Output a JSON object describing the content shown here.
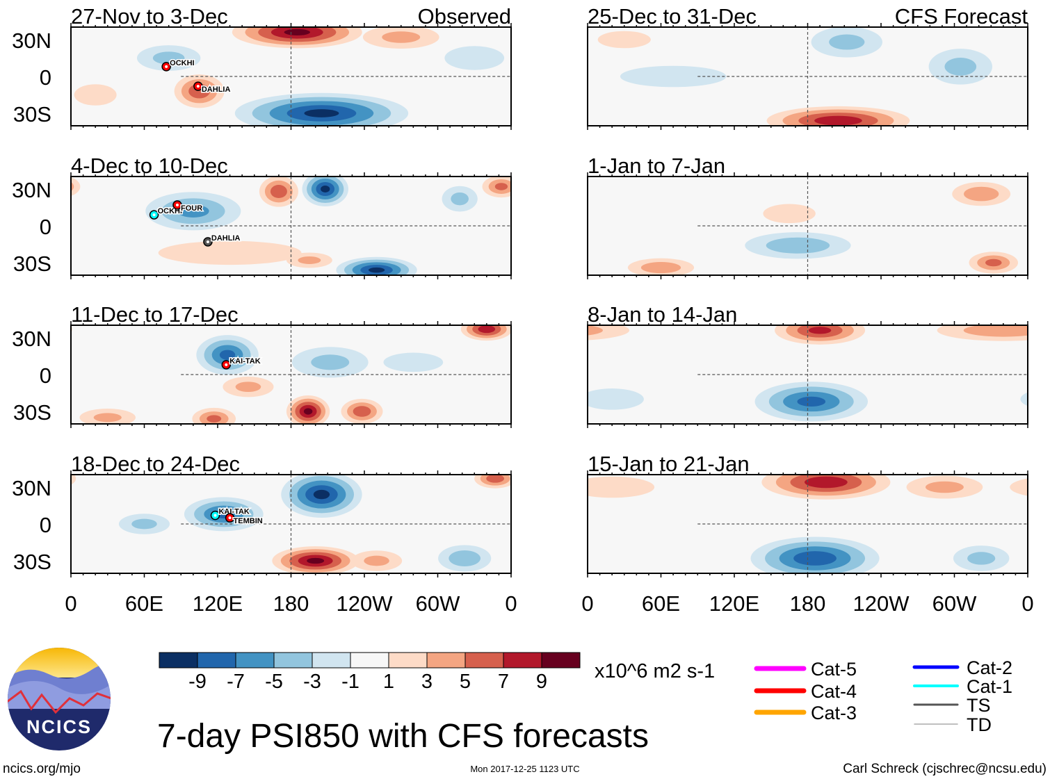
{
  "chart_data": {
    "type": "heatmap",
    "title": "7-day PSI850 with CFS forecasts",
    "units": "x10^6 m2 s-1",
    "colorbar": {
      "ticks": [
        "-9",
        "-7",
        "-5",
        "-3",
        "-1",
        "1",
        "3",
        "5",
        "7",
        "9"
      ],
      "levels": [
        -9,
        -7,
        -5,
        -3,
        -1,
        1,
        3,
        5,
        7,
        9
      ],
      "colors": [
        "#0b2f63",
        "#2166ac",
        "#4393c3",
        "#92c5de",
        "#d1e5f0",
        "#f7f7f7",
        "#fddbc7",
        "#f4a582",
        "#d6604d",
        "#b2182b",
        "#67001f"
      ]
    },
    "xticks": [
      "0",
      "60E",
      "120E",
      "180",
      "120W",
      "60W",
      "0"
    ],
    "yticks": [
      "30N",
      "0",
      "30S"
    ],
    "columns": {
      "left": "Observed",
      "right": "CFS Forecast"
    },
    "panels": [
      {
        "title": "27-Nov to 3-Dec",
        "col": 0,
        "row": 0,
        "anomalies": [
          [
            185,
            36,
            45,
            11,
            10
          ],
          [
            205,
            -30,
            60,
            14,
            -10
          ],
          [
            105,
            -12,
            18,
            12,
            7
          ],
          [
            80,
            15,
            25,
            10,
            -4
          ],
          [
            270,
            32,
            30,
            9,
            4
          ],
          [
            330,
            15,
            25,
            10,
            -3
          ],
          [
            20,
            -15,
            20,
            10,
            2
          ]
        ],
        "storms": [
          {
            "name": "OCKHI",
            "lon": 78,
            "lat": 8,
            "color": "#ff0000"
          },
          {
            "name": "DAHLIA",
            "lon": 104,
            "lat": -8,
            "color": "#ff0000"
          }
        ]
      },
      {
        "title": "4-Dec to 10-Dec",
        "col": 0,
        "row": 1,
        "anomalies": [
          [
            100,
            12,
            35,
            14,
            -6
          ],
          [
            170,
            28,
            14,
            11,
            7
          ],
          [
            208,
            30,
            16,
            12,
            -10
          ],
          [
            250,
            -36,
            28,
            9,
            -10
          ],
          [
            130,
            -22,
            60,
            10,
            3
          ],
          [
            352,
            32,
            14,
            8,
            6
          ],
          [
            318,
            22,
            14,
            10,
            -4
          ],
          [
            195,
            -28,
            18,
            6,
            4
          ]
        ],
        "storms": [
          {
            "name": "OCKHI",
            "lon": 68,
            "lat": 9,
            "color": "#00ffff"
          },
          {
            "name": "FOUR",
            "lon": 87,
            "lat": 17,
            "color": "#ff0000"
          },
          {
            "name": "DAHLIA",
            "lon": 112,
            "lat": -13,
            "color": "#555555"
          }
        ]
      },
      {
        "title": "11-Dec to 17-Dec",
        "col": 0,
        "row": 2,
        "anomalies": [
          [
            128,
            16,
            22,
            14,
            -8
          ],
          [
            194,
            -30,
            15,
            11,
            10
          ],
          [
            238,
            -30,
            15,
            9,
            7
          ],
          [
            340,
            37,
            18,
            8,
            9
          ],
          [
            117,
            -36,
            16,
            8,
            6
          ],
          [
            212,
            10,
            30,
            12,
            -4
          ],
          [
            30,
            -35,
            22,
            7,
            4
          ],
          [
            145,
            -10,
            20,
            8,
            4
          ],
          [
            280,
            10,
            25,
            8,
            -3
          ]
        ],
        "storms": [
          {
            "name": "KAI-TAK",
            "lon": 127,
            "lat": 8,
            "color": "#ff0000"
          }
        ]
      },
      {
        "title": "18-Dec to 24-Dec",
        "col": 0,
        "row": 3,
        "anomalies": [
          [
            205,
            24,
            28,
            16,
            -10
          ],
          [
            200,
            -30,
            30,
            10,
            10
          ],
          [
            125,
            8,
            28,
            12,
            -8
          ],
          [
            60,
            0,
            20,
            8,
            -4
          ],
          [
            322,
            -28,
            20,
            10,
            -5
          ],
          [
            347,
            37,
            15,
            7,
            7
          ],
          [
            250,
            -30,
            20,
            8,
            4
          ]
        ],
        "storms": [
          {
            "name": "KAI-TAK",
            "lon": 118,
            "lat": 7,
            "color": "#00ffff"
          },
          {
            "name": "TEMBIN",
            "lon": 130,
            "lat": 5,
            "color": "#ff0000"
          }
        ]
      },
      {
        "title": "25-Dec to 31-Dec",
        "col": 1,
        "row": 0,
        "anomalies": [
          [
            205,
            -36,
            50,
            10,
            9
          ],
          [
            212,
            28,
            28,
            12,
            -4
          ],
          [
            305,
            8,
            25,
            14,
            -4
          ],
          [
            70,
            0,
            50,
            10,
            -2
          ],
          [
            30,
            30,
            25,
            8,
            2
          ]
        ],
        "storms": []
      },
      {
        "title": "1-Jan to 7-Jan",
        "col": 1,
        "row": 1,
        "anomalies": [
          [
            172,
            -16,
            40,
            10,
            -5
          ],
          [
            322,
            26,
            22,
            9,
            5
          ],
          [
            60,
            -34,
            25,
            7,
            5
          ],
          [
            332,
            -30,
            18,
            8,
            6
          ],
          [
            165,
            10,
            22,
            8,
            3
          ]
        ],
        "storms": []
      },
      {
        "title": "8-Jan to 14-Jan",
        "col": 1,
        "row": 2,
        "anomalies": [
          [
            190,
            36,
            32,
            10,
            8
          ],
          [
            183,
            -22,
            40,
            14,
            -8
          ],
          [
            340,
            36,
            50,
            8,
            5
          ],
          [
            20,
            -20,
            30,
            10,
            -2
          ]
        ],
        "storms": []
      },
      {
        "title": "15-Jan to 21-Jan",
        "col": 1,
        "row": 3,
        "anomalies": [
          [
            195,
            34,
            45,
            12,
            9
          ],
          [
            186,
            -28,
            45,
            15,
            -9
          ],
          [
            292,
            30,
            30,
            9,
            4
          ],
          [
            322,
            -28,
            22,
            10,
            -4
          ],
          [
            20,
            30,
            40,
            10,
            2
          ]
        ],
        "storms": []
      }
    ],
    "track_legend": [
      {
        "label": "Cat-5",
        "color": "#ff00ff"
      },
      {
        "label": "Cat-4",
        "color": "#ff0000"
      },
      {
        "label": "Cat-3",
        "color": "#ffa500"
      },
      {
        "label": "Cat-2",
        "color": "#0000ff"
      },
      {
        "label": "Cat-1",
        "color": "#00ffff"
      },
      {
        "label": "TS",
        "color": "#555555"
      },
      {
        "label": "TD",
        "color": "#aaaaaa"
      }
    ]
  },
  "logo": {
    "text": "NCICS"
  },
  "footer": {
    "left": "ncics.org/mjo",
    "center": "Mon 2017-12-25 1123 UTC",
    "right": "Carl Schreck (cjschrec@ncsu.edu)"
  }
}
